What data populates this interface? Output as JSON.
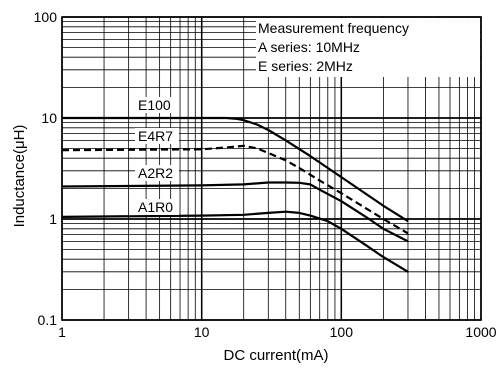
{
  "chart_data": {
    "type": "line",
    "xlabel": "DC current(mA)",
    "ylabel": "Inductance(μH)",
    "x_scale": "log",
    "y_scale": "log",
    "xlim": [
      1,
      1000
    ],
    "ylim": [
      0.1,
      100
    ],
    "x_ticks": [
      "1",
      "10",
      "100",
      "1000"
    ],
    "y_ticks": [
      "0.1",
      "1",
      "10",
      "100"
    ],
    "grid": true,
    "annotation": {
      "lines": [
        "Measurement frequency",
        "A series: 10MHz",
        "E series: 2MHz"
      ],
      "placement": "top-right"
    },
    "series": [
      {
        "name": "E100",
        "style": "solid",
        "x": [
          1,
          10,
          15,
          18,
          20,
          25,
          30,
          40,
          60,
          100,
          200,
          300
        ],
        "y": [
          10,
          10,
          10,
          9.8,
          9.5,
          8.6,
          7.6,
          6.0,
          4.2,
          2.6,
          1.35,
          0.95
        ]
      },
      {
        "name": "E4R7",
        "style": "dashed",
        "x": [
          1,
          10,
          15,
          20,
          25,
          30,
          40,
          50,
          70,
          100,
          200,
          300
        ],
        "y": [
          4.8,
          4.9,
          5.1,
          5.3,
          5.0,
          4.5,
          3.8,
          3.2,
          2.4,
          1.8,
          1.0,
          0.72
        ]
      },
      {
        "name": "A2R2",
        "style": "solid",
        "x": [
          1,
          10,
          20,
          30,
          40,
          50,
          60,
          70,
          100,
          150,
          200,
          300
        ],
        "y": [
          2.1,
          2.15,
          2.2,
          2.3,
          2.3,
          2.28,
          2.2,
          1.95,
          1.5,
          1.05,
          0.8,
          0.6
        ]
      },
      {
        "name": "A1R0",
        "style": "solid",
        "x": [
          1,
          10,
          20,
          30,
          40,
          50,
          60,
          80,
          100,
          150,
          200,
          300
        ],
        "y": [
          1.05,
          1.08,
          1.1,
          1.15,
          1.18,
          1.15,
          1.08,
          0.95,
          0.8,
          0.55,
          0.42,
          0.3
        ]
      }
    ]
  }
}
